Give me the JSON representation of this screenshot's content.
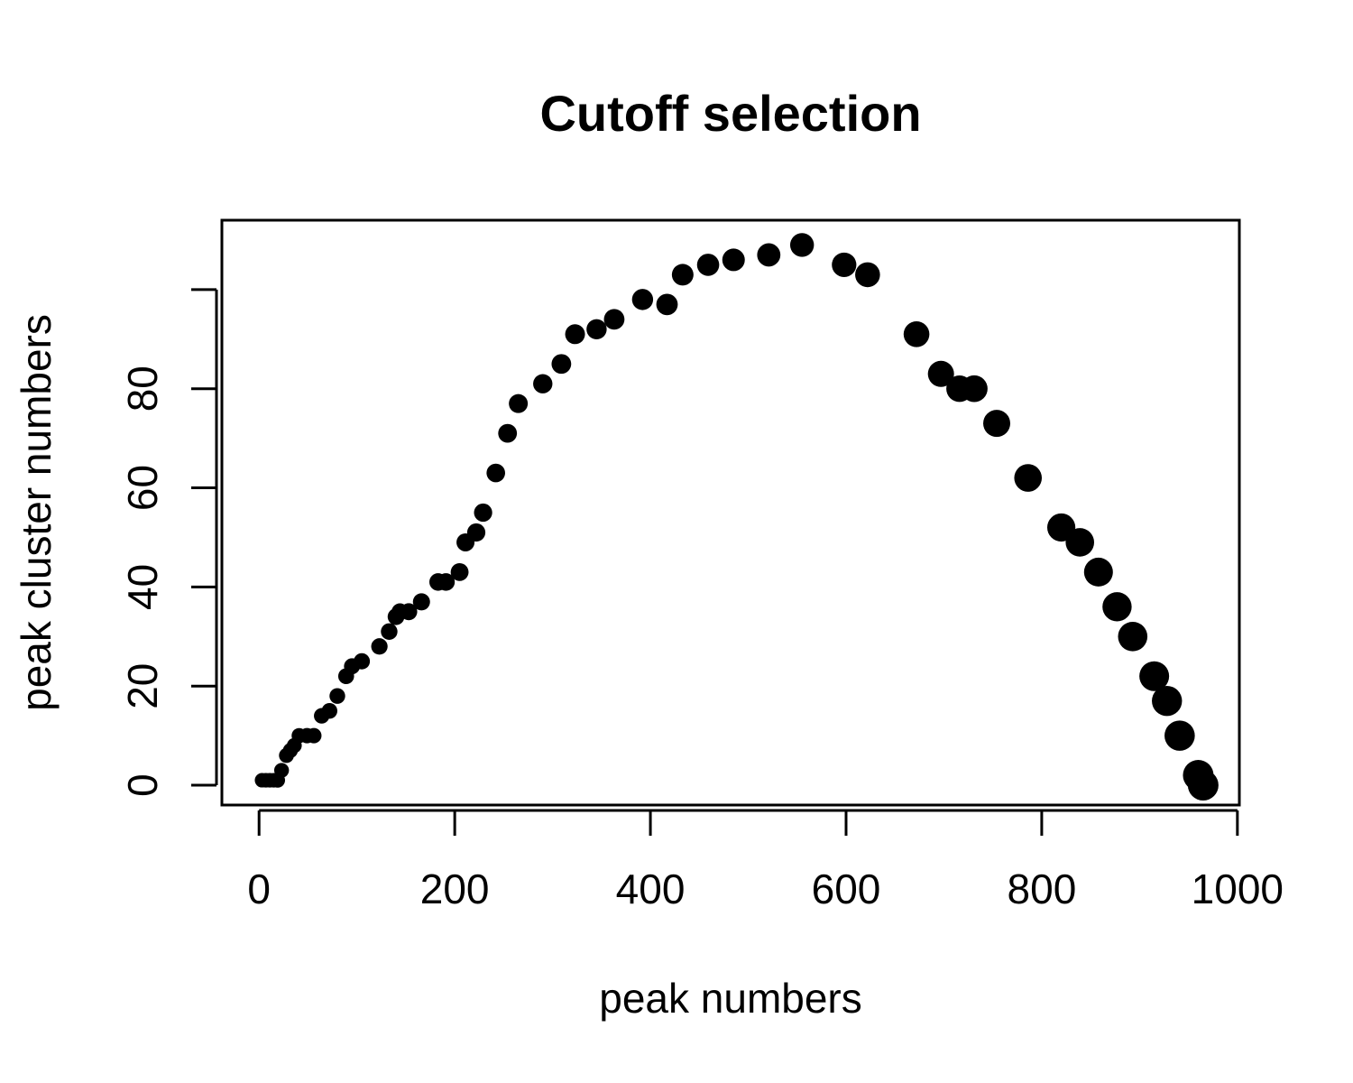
{
  "chart_data": {
    "type": "scatter",
    "title": "Cutoff selection",
    "xlabel": "peak numbers",
    "ylabel": "peak cluster numbers",
    "xlim": [
      -38,
      1002
    ],
    "ylim": [
      -4,
      114
    ],
    "x_ticks": [
      0,
      200,
      400,
      600,
      800,
      1000
    ],
    "y_ticks": [
      0,
      20,
      40,
      60,
      80,
      100
    ],
    "x_tick_labels": [
      "0",
      "200",
      "400",
      "600",
      "800",
      "1000"
    ],
    "y_tick_labels": [
      "0",
      "20",
      "40",
      "60",
      "80",
      ""
    ],
    "grid": false,
    "legend": "none",
    "point_color": "#000000",
    "points": [
      {
        "x": 3,
        "y": 1
      },
      {
        "x": 7,
        "y": 1
      },
      {
        "x": 11,
        "y": 1
      },
      {
        "x": 15,
        "y": 1
      },
      {
        "x": 19,
        "y": 1
      },
      {
        "x": 23,
        "y": 3
      },
      {
        "x": 28,
        "y": 6
      },
      {
        "x": 32,
        "y": 7
      },
      {
        "x": 36,
        "y": 8
      },
      {
        "x": 41,
        "y": 10
      },
      {
        "x": 49,
        "y": 10
      },
      {
        "x": 56,
        "y": 10
      },
      {
        "x": 64,
        "y": 14
      },
      {
        "x": 72,
        "y": 15
      },
      {
        "x": 80,
        "y": 18
      },
      {
        "x": 89,
        "y": 22
      },
      {
        "x": 95,
        "y": 24
      },
      {
        "x": 105,
        "y": 25
      },
      {
        "x": 123,
        "y": 28
      },
      {
        "x": 133,
        "y": 31
      },
      {
        "x": 140,
        "y": 34
      },
      {
        "x": 144,
        "y": 35
      },
      {
        "x": 153,
        "y": 35
      },
      {
        "x": 166,
        "y": 37
      },
      {
        "x": 183,
        "y": 41
      },
      {
        "x": 191,
        "y": 41
      },
      {
        "x": 205,
        "y": 43
      },
      {
        "x": 211,
        "y": 49
      },
      {
        "x": 222,
        "y": 51
      },
      {
        "x": 229,
        "y": 55
      },
      {
        "x": 242,
        "y": 63
      },
      {
        "x": 254,
        "y": 71
      },
      {
        "x": 265,
        "y": 77
      },
      {
        "x": 290,
        "y": 81
      },
      {
        "x": 309,
        "y": 85
      },
      {
        "x": 323,
        "y": 91
      },
      {
        "x": 345,
        "y": 92
      },
      {
        "x": 363,
        "y": 94
      },
      {
        "x": 392,
        "y": 98
      },
      {
        "x": 417,
        "y": 97
      },
      {
        "x": 433,
        "y": 103
      },
      {
        "x": 459,
        "y": 105
      },
      {
        "x": 485,
        "y": 106
      },
      {
        "x": 521,
        "y": 107
      },
      {
        "x": 555,
        "y": 109
      },
      {
        "x": 598,
        "y": 105
      },
      {
        "x": 622,
        "y": 103
      },
      {
        "x": 672,
        "y": 91
      },
      {
        "x": 697,
        "y": 83
      },
      {
        "x": 716,
        "y": 80
      },
      {
        "x": 731,
        "y": 80
      },
      {
        "x": 754,
        "y": 73
      },
      {
        "x": 786,
        "y": 62
      },
      {
        "x": 820,
        "y": 52
      },
      {
        "x": 839,
        "y": 49
      },
      {
        "x": 858,
        "y": 43
      },
      {
        "x": 877,
        "y": 36
      },
      {
        "x": 893,
        "y": 30
      },
      {
        "x": 915,
        "y": 22
      },
      {
        "x": 928,
        "y": 17
      },
      {
        "x": 941,
        "y": 10
      },
      {
        "x": 960,
        "y": 2
      },
      {
        "x": 965,
        "y": 0
      }
    ]
  }
}
